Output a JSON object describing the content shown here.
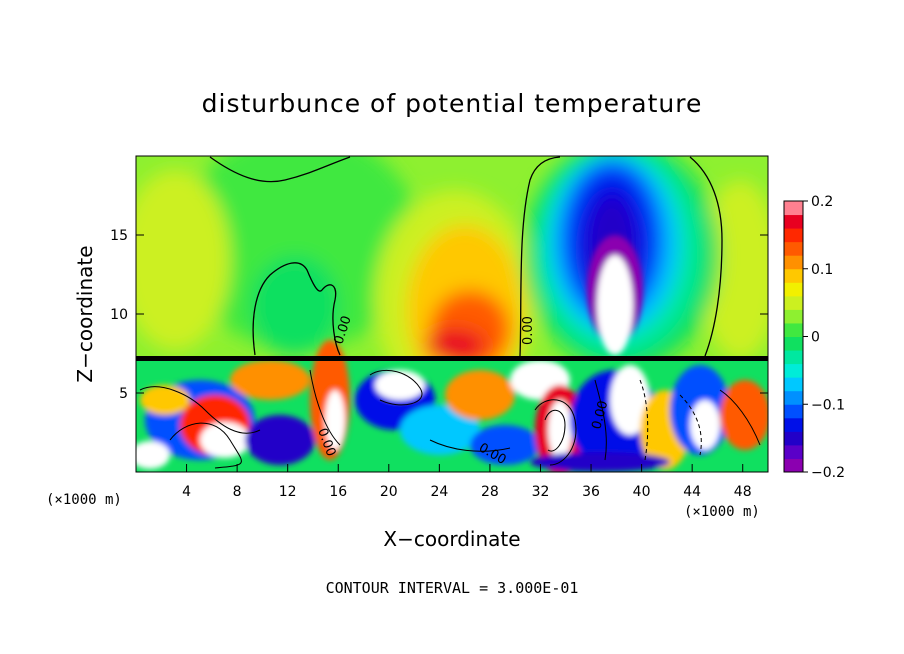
{
  "chart_data": {
    "type": "heatmap",
    "title": "disturbunce of potential temperature",
    "xlabel": "X−coordinate",
    "ylabel": "Z−coordinate",
    "x_unit": "(×1000 m)",
    "y_unit": "(×1000 m)",
    "xlim": [
      0,
      50
    ],
    "ylim": [
      0,
      20
    ],
    "x_ticks": [
      "4",
      "8",
      "12",
      "16",
      "20",
      "24",
      "28",
      "32",
      "36",
      "40",
      "44",
      "48"
    ],
    "y_ticks": [
      "5",
      "10",
      "15"
    ],
    "colorbar": {
      "min": -0.2,
      "max": 0.2,
      "tick_labels": [
        "0.2",
        "0.1",
        "0",
        "−0.1",
        "−0.2"
      ],
      "colors": [
        "#8b00b0",
        "#5a00c8",
        "#2200c8",
        "#0010e8",
        "#0050ff",
        "#0090ff",
        "#00c8ff",
        "#00ecd8",
        "#00e8a0",
        "#10e060",
        "#40e840",
        "#8ef030",
        "#ccf020",
        "#f2f000",
        "#ffc800",
        "#ff9000",
        "#ff5a00",
        "#ff2800",
        "#e80020",
        "#ff8090"
      ]
    },
    "contour_labels": [
      "0.00",
      "0.00",
      "0.00",
      "0.00",
      "0.00"
    ],
    "grid": false,
    "legend": "colorbar-right",
    "features": [
      {
        "name": "negative-core",
        "x_center": 37.5,
        "z_center": 13,
        "value": -0.2
      },
      {
        "name": "positive-plume",
        "x_center": 24,
        "z_center": 10,
        "value": 0.12
      },
      {
        "name": "weak-negative-cell",
        "x_center": 12.5,
        "z_center": 11,
        "value": -0.01
      },
      {
        "name": "surface-layer-top",
        "z": 7.2
      }
    ]
  },
  "footer": {
    "contour_interval": "CONTOUR INTERVAL = 3.000E-01"
  }
}
